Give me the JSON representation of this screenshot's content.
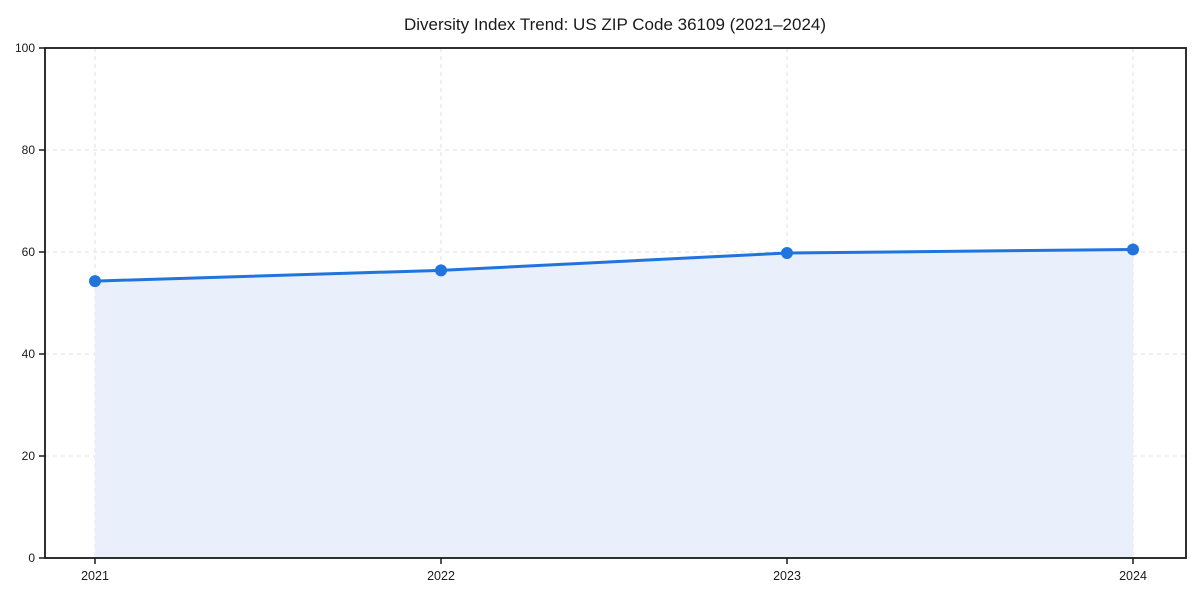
{
  "chart_data": {
    "type": "area",
    "title": "Diversity Index Trend: US ZIP Code 36109 (2021–2024)",
    "xlabel": "",
    "ylabel": "",
    "categories": [
      "2021",
      "2022",
      "2023",
      "2024"
    ],
    "values": [
      54.3,
      56.4,
      59.8,
      60.5
    ],
    "ylim": [
      0,
      100
    ],
    "yticks": [
      0,
      20,
      40,
      60,
      80,
      100
    ],
    "grid": true,
    "grid_style": "dashed",
    "legend_position": "none",
    "marker": "circle",
    "colors": {
      "line": "#2173dd",
      "marker": "#2173dd",
      "fill": "#e9f0fc",
      "grid": "#e2e2e2",
      "axis": "#1a1a1a",
      "text": "#1a1a1a",
      "background": "#ffffff"
    }
  }
}
